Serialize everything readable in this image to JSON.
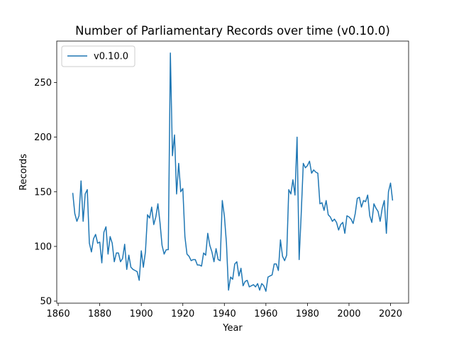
{
  "chart_data": {
    "type": "line",
    "title": "Number of Parliamentary Records over time (v0.10.0)",
    "xlabel": "Year",
    "ylabel": "Records",
    "x": [
      1867,
      1868,
      1869,
      1870,
      1871,
      1872,
      1873,
      1874,
      1875,
      1876,
      1877,
      1878,
      1879,
      1880,
      1881,
      1882,
      1883,
      1884,
      1885,
      1886,
      1887,
      1888,
      1889,
      1890,
      1891,
      1892,
      1893,
      1894,
      1895,
      1896,
      1897,
      1898,
      1899,
      1900,
      1901,
      1902,
      1903,
      1904,
      1905,
      1906,
      1907,
      1908,
      1909,
      1910,
      1911,
      1912,
      1913,
      1914,
      1915,
      1916,
      1917,
      1918,
      1919,
      1920,
      1921,
      1922,
      1923,
      1924,
      1925,
      1926,
      1927,
      1928,
      1929,
      1930,
      1931,
      1932,
      1933,
      1934,
      1935,
      1936,
      1937,
      1938,
      1939,
      1940,
      1941,
      1942,
      1943,
      1944,
      1945,
      1946,
      1947,
      1948,
      1949,
      1950,
      1951,
      1952,
      1953,
      1954,
      1955,
      1956,
      1957,
      1958,
      1959,
      1960,
      1961,
      1962,
      1963,
      1964,
      1965,
      1966,
      1967,
      1968,
      1969,
      1970,
      1971,
      1972,
      1973,
      1974,
      1975,
      1976,
      1977,
      1978,
      1979,
      1980,
      1981,
      1982,
      1983,
      1984,
      1985,
      1986,
      1987,
      1988,
      1989,
      1990,
      1991,
      1992,
      1993,
      1994,
      1995,
      1996,
      1997,
      1998,
      1999,
      2000,
      2001,
      2002,
      2003,
      2004,
      2005,
      2006,
      2007,
      2008,
      2009,
      2010,
      2011,
      2012,
      2013,
      2014,
      2015,
      2016,
      2017,
      2018,
      2019,
      2020,
      2021
    ],
    "series": [
      {
        "name": "v0.10.0",
        "color": "#1f77b4",
        "values": [
          149,
          130,
          123,
          128,
          160,
          123,
          148,
          152,
          103,
          95,
          107,
          111,
          103,
          104,
          85,
          113,
          118,
          93,
          109,
          103,
          86,
          94,
          94,
          86,
          89,
          102,
          79,
          92,
          81,
          79,
          78,
          77,
          69,
          96,
          81,
          95,
          129,
          126,
          136,
          120,
          127,
          139,
          122,
          101,
          93,
          97,
          97,
          277,
          183,
          202,
          148,
          176,
          150,
          153,
          109,
          93,
          91,
          87,
          88,
          88,
          83,
          83,
          82,
          94,
          92,
          112,
          101,
          95,
          86,
          98,
          88,
          87,
          142,
          128,
          103,
          60,
          72,
          70,
          84,
          86,
          73,
          80,
          64,
          68,
          69,
          63,
          64,
          65,
          63,
          66,
          60,
          66,
          64,
          59,
          72,
          73,
          74,
          84,
          84,
          78,
          106,
          91,
          87,
          92,
          152,
          148,
          161,
          147,
          200,
          88,
          130,
          176,
          172,
          174,
          178,
          167,
          170,
          168,
          167,
          139,
          140,
          133,
          142,
          129,
          127,
          123,
          125,
          122,
          115,
          120,
          122,
          112,
          128,
          127,
          125,
          121,
          130,
          144,
          145,
          136,
          142,
          141,
          147,
          128,
          122,
          139,
          135,
          132,
          123,
          135,
          142,
          112,
          150,
          158,
          142
        ]
      }
    ],
    "xlim": [
      1859.3,
      2028.7
    ],
    "xticks": [
      1860,
      1880,
      1900,
      1920,
      1940,
      1960,
      1980,
      2000,
      2020
    ],
    "ylim": [
      48.1,
      287.9
    ],
    "yticks": [
      50,
      100,
      150,
      200,
      250
    ],
    "legend": "upper left",
    "grid": false
  }
}
